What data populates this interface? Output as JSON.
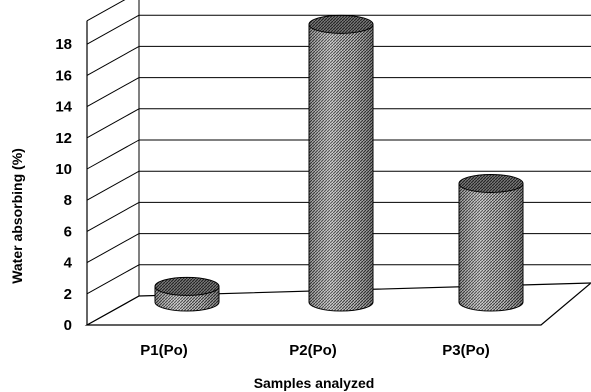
{
  "chart_data": {
    "type": "bar",
    "style": "3d-cylinder",
    "categories": [
      "P1(Po)",
      "P2(Po)",
      "P3(Po)"
    ],
    "values": [
      1,
      17.8,
      7.6
    ],
    "xlabel": "Samples analyzed",
    "ylabel": "Water absorbing  (%)",
    "ylim": [
      0,
      18
    ],
    "yticks": [
      "0",
      "2",
      "4",
      "6",
      "8",
      "10",
      "12",
      "14",
      "16",
      "18"
    ],
    "grid": true,
    "legend": "none",
    "colors": {
      "bar_fill": "#8a8a8a",
      "bar_top": "#5e5e5e",
      "grid": "#000000"
    }
  }
}
